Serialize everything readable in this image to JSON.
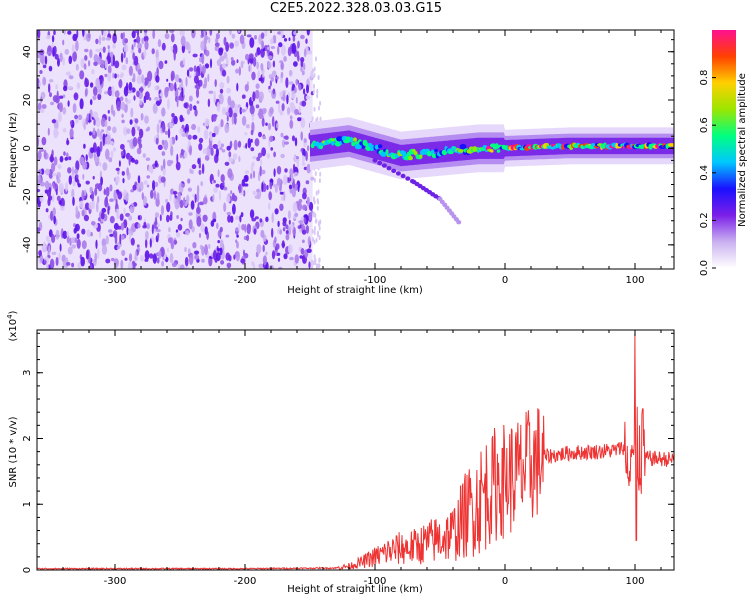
{
  "title": "C2E5.2022.328.03.03.G15",
  "chart_data": [
    {
      "type": "heatmap",
      "xlabel": "Height of straight line (km)",
      "ylabel": "Frequency (Hz)",
      "xlim": [
        -360,
        130
      ],
      "ylim": [
        -50,
        49
      ],
      "xticks": [
        -300,
        -200,
        -100,
        0,
        100
      ],
      "yticks": [
        -40,
        -20,
        0,
        20,
        40
      ],
      "colorbar": {
        "label": "Normalized spectral amplitude",
        "range": [
          0,
          1
        ],
        "ticks": [
          "0.0",
          "0.2",
          "0.4",
          "0.6",
          "0.8"
        ],
        "colors": [
          "#ffffff",
          "#c9b0f0",
          "#7b1fe8",
          "#1a10ff",
          "#00c8ff",
          "#00ff80",
          "#9be600",
          "#ffd000",
          "#ff4000",
          "#ff1090"
        ]
      },
      "features": {
        "noise_region_height_km": [
          -360,
          -148
        ],
        "signal_track": [
          {
            "height_km": -150,
            "frequency_hz": 1
          },
          {
            "height_km": -120,
            "frequency_hz": 3
          },
          {
            "height_km": -100,
            "frequency_hz": 0
          },
          {
            "height_km": -80,
            "frequency_hz": -3
          },
          {
            "height_km": -60,
            "frequency_hz": -2
          },
          {
            "height_km": -40,
            "frequency_hz": -1
          },
          {
            "height_km": -20,
            "frequency_hz": 0
          },
          {
            "height_km": 0,
            "frequency_hz": 0
          },
          {
            "height_km": 50,
            "frequency_hz": 1
          },
          {
            "height_km": 100,
            "frequency_hz": 1
          },
          {
            "height_km": 130,
            "frequency_hz": 1
          }
        ],
        "secondary_branch": [
          {
            "height_km": -100,
            "frequency_hz": -5
          },
          {
            "height_km": -70,
            "frequency_hz": -14
          },
          {
            "height_km": -50,
            "frequency_hz": -21
          },
          {
            "height_km": -35,
            "frequency_hz": -31
          }
        ]
      }
    },
    {
      "type": "line",
      "xlabel": "Height of straight line (km)",
      "ylabel": "SNR (10 * v/v)",
      "scale_label": "(x10",
      "scale_exponent": "4",
      "scale_suffix": ")",
      "xlim": [
        -360,
        130
      ],
      "ylim": [
        0,
        3.65
      ],
      "xticks": [
        -300,
        -200,
        -100,
        0,
        100
      ],
      "yticks": [
        0,
        1,
        2,
        3
      ],
      "color": "#ee3333",
      "series": [
        {
          "points": [
            [
              -360,
              0.02
            ],
            [
              -300,
              0.02
            ],
            [
              -200,
              0.02
            ],
            [
              -130,
              0.03
            ],
            [
              -120,
              0.06
            ],
            [
              -110,
              0.12
            ],
            [
              -100,
              0.2
            ],
            [
              -90,
              0.28
            ],
            [
              -80,
              0.33
            ],
            [
              -70,
              0.35
            ],
            [
              -60,
              0.42
            ],
            [
              -50,
              0.48
            ],
            [
              -40,
              0.55
            ],
            [
              -30,
              0.85
            ],
            [
              -20,
              1.05
            ],
            [
              -10,
              1.3
            ],
            [
              0,
              1.38
            ],
            [
              10,
              1.45
            ],
            [
              20,
              1.6
            ],
            [
              30,
              1.72
            ],
            [
              50,
              1.78
            ],
            [
              70,
              1.8
            ],
            [
              85,
              1.82
            ],
            [
              95,
              1.9
            ],
            [
              100,
              1.8
            ],
            [
              105,
              1.75
            ],
            [
              110,
              1.7
            ],
            [
              130,
              1.68
            ]
          ],
          "spikes": [
            {
              "height_km": 100,
              "snr": 3.6
            },
            {
              "height_km": 101,
              "snr": 0.45
            },
            {
              "height_km": 106,
              "snr": 2.45
            },
            {
              "height_km": -10,
              "snr": 2.0
            },
            {
              "height_km": -2,
              "snr": 1.85
            }
          ]
        }
      ]
    }
  ]
}
